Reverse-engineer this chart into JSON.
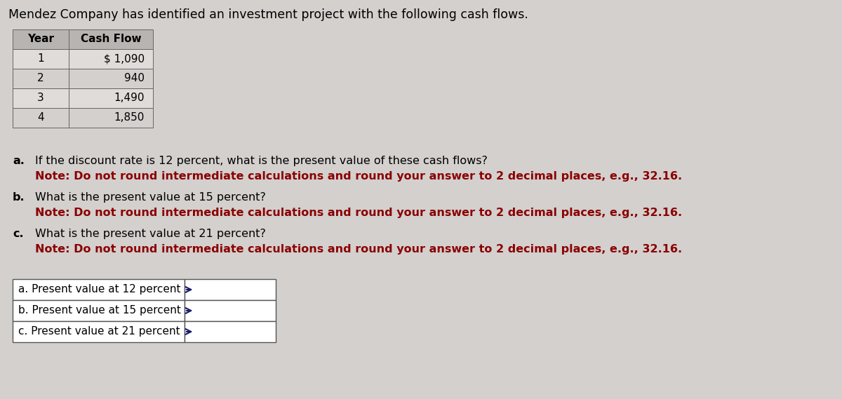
{
  "title": "Mendez Company has identified an investment project with the following cash flows.",
  "title_fontsize": 12.5,
  "background_color": "#d3d0ce",
  "table1_headers": [
    "Year",
    "Cash Flow"
  ],
  "table1_rows": [
    [
      "1",
      "$ 1,090"
    ],
    [
      "2",
      "940"
    ],
    [
      "3",
      "1,490"
    ],
    [
      "4",
      "1,850"
    ]
  ],
  "questions": [
    {
      "label": "a.",
      "question": "If the discount rate is 12 percent, what is the present value of these cash flows?",
      "note": "Note: Do not round intermediate calculations and round your answer to 2 decimal places, e.g., 32.16."
    },
    {
      "label": "b.",
      "question": "What is the present value at 15 percent?",
      "note": "Note: Do not round intermediate calculations and round your answer to 2 decimal places, e.g., 32.16."
    },
    {
      "label": "c.",
      "question": "What is the present value at 21 percent?",
      "note": "Note: Do not round intermediate calculations and round your answer to 2 decimal places, e.g., 32.16."
    }
  ],
  "answer_table_rows": [
    "a. Present value at 12 percent",
    "b. Present value at 15 percent",
    "c. Present value at 21 percent"
  ],
  "note_color": "#8b0000",
  "text_color": "#000000",
  "table_header_bg": "#b8b4b2",
  "table_row_bg_1": "#e0dcda",
  "table_row_bg_2": "#d3d0ce",
  "answer_bg": "#e8e5e3"
}
